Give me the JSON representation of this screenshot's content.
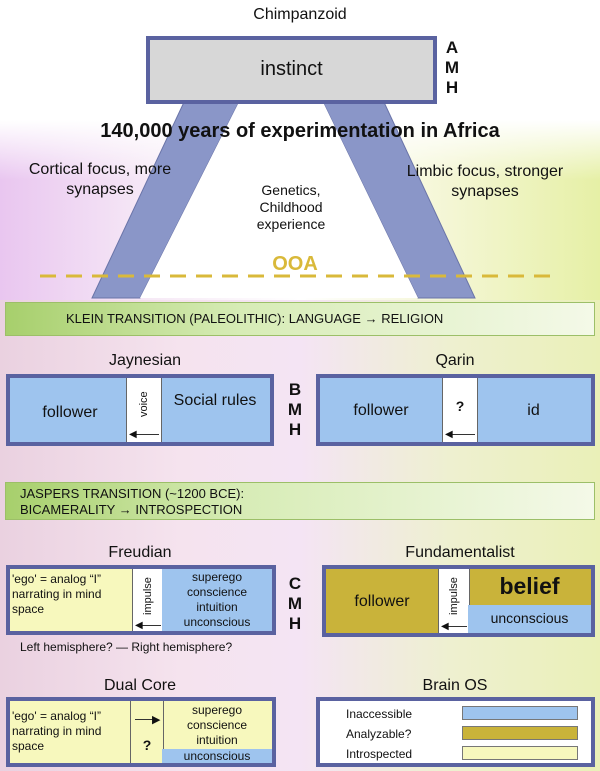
{
  "top": {
    "title": "Chimpanzoid",
    "instinct": "instinct",
    "amh": [
      "A",
      "M",
      "H"
    ],
    "headline": "140,000 years of experimentation in Africa",
    "left_note": "Cortical focus, more synapses",
    "right_note": "Limbic focus, stronger synapses",
    "triangle_text": "Genetics, Childhood experience",
    "ooa": "OOA"
  },
  "klein": {
    "label": "KLEIN TRANSITION (PALEOLITHIC):  LANGUAGE → RELIGION"
  },
  "jaynesian": {
    "title": "Jaynesian",
    "follower": "follower",
    "voice": "voice",
    "social_rules": "Social rules"
  },
  "bmh": [
    "B",
    "M",
    "H"
  ],
  "qarin": {
    "title": "Qarin",
    "follower": "follower",
    "question": "?",
    "id": "id"
  },
  "jaspers": {
    "line1": "JASPERS TRANSITION (~1200 BCE):",
    "line2": "BICAMERALITY → INTROSPECTION"
  },
  "freudian": {
    "title": "Freudian",
    "ego": "'ego' = analog “I” narrating in mind space",
    "impulse": "impulse",
    "superego_lines": [
      "superego",
      "conscience",
      "intuition",
      "unconscious"
    ],
    "hemisphere": "Left hemisphere? — Right hemisphere?"
  },
  "cmh": [
    "C",
    "M",
    "H"
  ],
  "fundamentalist": {
    "title": "Fundamentalist",
    "follower": "follower",
    "impulse": "impulse",
    "belief": "belief",
    "unconscious": "unconscious"
  },
  "dual_core": {
    "title": "Dual Core",
    "ego": "'ego' = analog “I” narrating in mind space",
    "question": "?",
    "superego_lines": [
      "superego",
      "conscience",
      "intuition"
    ],
    "unconscious": "unconscious"
  },
  "brain_os": {
    "title": "Brain OS",
    "legend": [
      {
        "label": "Inaccessible",
        "color": "#9ec4ee"
      },
      {
        "label": "Analyzable?",
        "color": "#c9b33a"
      },
      {
        "label": "Introspected",
        "color": "#f7f8bd"
      }
    ]
  },
  "colors": {
    "frame": "#5a62a0",
    "inaccessible": "#9ec4ee",
    "analyzable": "#c9b33a",
    "introspected": "#f7f8bd",
    "ooa": "#d9b93a"
  }
}
